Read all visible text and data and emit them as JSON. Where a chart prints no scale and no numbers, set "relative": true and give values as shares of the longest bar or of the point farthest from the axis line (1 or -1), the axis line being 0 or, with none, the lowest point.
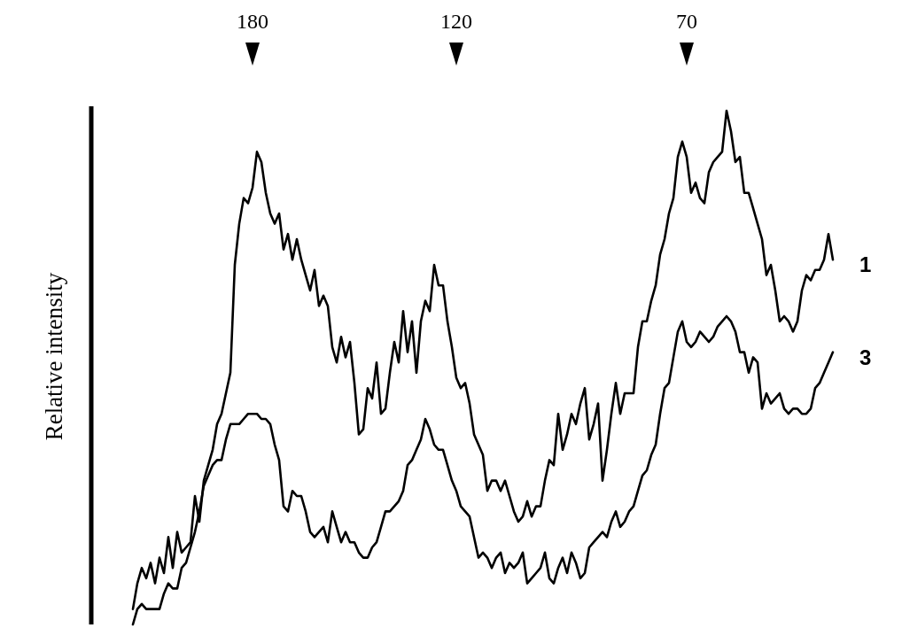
{
  "chart_data": {
    "type": "line",
    "relative": true,
    "ylabel": "Relative intensity",
    "tick_labels": "x",
    "marker": "none",
    "line_style": "solid",
    "categories": [
      null,
      null,
      null,
      null,
      null,
      null,
      null,
      null,
      null,
      null,
      null,
      null,
      null,
      null,
      null,
      null,
      null,
      null,
      null,
      null,
      null,
      null,
      null,
      null,
      null,
      null,
      null,
      "180",
      null,
      null,
      null,
      null,
      null,
      null,
      null,
      null,
      null,
      null,
      null,
      null,
      null,
      null,
      null,
      null,
      null,
      null,
      null,
      null,
      null,
      null,
      null,
      null,
      null,
      null,
      null,
      null,
      null,
      null,
      null,
      null,
      null,
      null,
      null,
      null,
      null,
      null,
      null,
      null,
      null,
      null,
      null,
      null,
      null,
      "120",
      null,
      null,
      null,
      null,
      null,
      null,
      null,
      null,
      null,
      null,
      null,
      null,
      null,
      null,
      null,
      null,
      null,
      null,
      null,
      null,
      null,
      null,
      null,
      null,
      null,
      null,
      null,
      null,
      null,
      null,
      null,
      null,
      null,
      null,
      null,
      null,
      null,
      null,
      null,
      null,
      null,
      null,
      null,
      null,
      null,
      null,
      null,
      null,
      null,
      null,
      null,
      "70",
      null,
      null,
      null,
      null,
      null,
      null,
      null,
      null,
      null,
      null,
      null,
      null,
      null,
      null,
      null,
      null,
      null,
      null,
      null,
      null,
      null,
      null,
      null,
      null,
      null,
      null,
      null,
      null,
      null,
      null,
      null,
      null,
      null
    ],
    "series": [
      {
        "name": "1",
        "color": "#000000",
        "values": [
          0.03,
          0.08,
          0.11,
          0.09,
          0.12,
          0.08,
          0.13,
          0.1,
          0.17,
          0.11,
          0.18,
          0.14,
          0.15,
          0.16,
          0.25,
          0.2,
          0.28,
          0.31,
          0.34,
          0.39,
          0.41,
          0.45,
          0.49,
          0.7,
          0.78,
          0.83,
          0.82,
          0.85,
          0.92,
          0.9,
          0.84,
          0.8,
          0.78,
          0.8,
          0.73,
          0.76,
          0.71,
          0.75,
          0.71,
          0.68,
          0.65,
          0.69,
          0.62,
          0.64,
          0.62,
          0.54,
          0.51,
          0.56,
          0.52,
          0.55,
          0.47,
          0.37,
          0.38,
          0.46,
          0.44,
          0.51,
          0.41,
          0.42,
          0.49,
          0.55,
          0.51,
          0.61,
          0.53,
          0.59,
          0.49,
          0.59,
          0.63,
          0.61,
          0.7,
          0.66,
          0.66,
          0.59,
          0.54,
          0.48,
          0.46,
          0.47,
          0.43,
          0.37,
          0.35,
          0.33,
          0.26,
          0.28,
          0.28,
          0.26,
          0.28,
          0.25,
          0.22,
          0.2,
          0.21,
          0.24,
          0.21,
          0.23,
          0.23,
          0.28,
          0.32,
          0.31,
          0.41,
          0.34,
          0.37,
          0.41,
          0.39,
          0.43,
          0.46,
          0.36,
          0.39,
          0.43,
          0.28,
          0.34,
          0.41,
          0.47,
          0.41,
          0.45,
          0.45,
          0.45,
          0.54,
          0.59,
          0.59,
          0.63,
          0.66,
          0.72,
          0.75,
          0.8,
          0.83,
          0.91,
          0.94,
          0.91,
          0.84,
          0.86,
          0.83,
          0.82,
          0.88,
          0.9,
          0.91,
          0.92,
          1.0,
          0.96,
          0.9,
          0.91,
          0.84,
          0.84,
          0.81,
          0.78,
          0.75,
          0.68,
          0.7,
          0.65,
          0.59,
          0.6,
          0.59,
          0.57,
          0.59,
          0.65,
          0.68,
          0.67,
          0.69,
          0.69,
          0.71,
          0.76,
          0.71
        ]
      },
      {
        "name": "3",
        "color": "#000000",
        "values": [
          0,
          0.03,
          0.04,
          0.03,
          0.03,
          0.03,
          0.03,
          0.06,
          0.08,
          0.07,
          0.07,
          0.11,
          0.12,
          0.15,
          0.18,
          0.22,
          0.27,
          0.29,
          0.31,
          0.32,
          0.32,
          0.36,
          0.39,
          0.39,
          0.39,
          0.4,
          0.41,
          0.41,
          0.41,
          0.4,
          0.4,
          0.39,
          0.35,
          0.32,
          0.23,
          0.22,
          0.26,
          0.25,
          0.25,
          0.22,
          0.18,
          0.17,
          0.18,
          0.19,
          0.16,
          0.22,
          0.19,
          0.16,
          0.18,
          0.16,
          0.16,
          0.14,
          0.13,
          0.13,
          0.15,
          0.16,
          0.19,
          0.22,
          0.22,
          0.23,
          0.24,
          0.26,
          0.31,
          0.32,
          0.34,
          0.36,
          0.4,
          0.38,
          0.35,
          0.34,
          0.34,
          0.31,
          0.28,
          0.26,
          0.23,
          0.22,
          0.21,
          0.17,
          0.13,
          0.14,
          0.13,
          0.11,
          0.13,
          0.14,
          0.1,
          0.12,
          0.11,
          0.12,
          0.14,
          0.08,
          0.09,
          0.1,
          0.11,
          0.14,
          0.09,
          0.08,
          0.11,
          0.13,
          0.1,
          0.14,
          0.12,
          0.09,
          0.1,
          0.15,
          0.16,
          0.17,
          0.18,
          0.17,
          0.2,
          0.22,
          0.19,
          0.2,
          0.22,
          0.23,
          0.26,
          0.29,
          0.3,
          0.33,
          0.35,
          0.41,
          0.46,
          0.47,
          0.52,
          0.57,
          0.59,
          0.55,
          0.54,
          0.55,
          0.57,
          0.56,
          0.55,
          0.56,
          0.58,
          0.59,
          0.6,
          0.59,
          0.57,
          0.53,
          0.53,
          0.49,
          0.52,
          0.51,
          0.42,
          0.45,
          0.43,
          0.44,
          0.45,
          0.42,
          0.41,
          0.42,
          0.42,
          0.41,
          0.41,
          0.42,
          0.46,
          0.47,
          0.49,
          0.51,
          0.53
        ]
      }
    ]
  }
}
